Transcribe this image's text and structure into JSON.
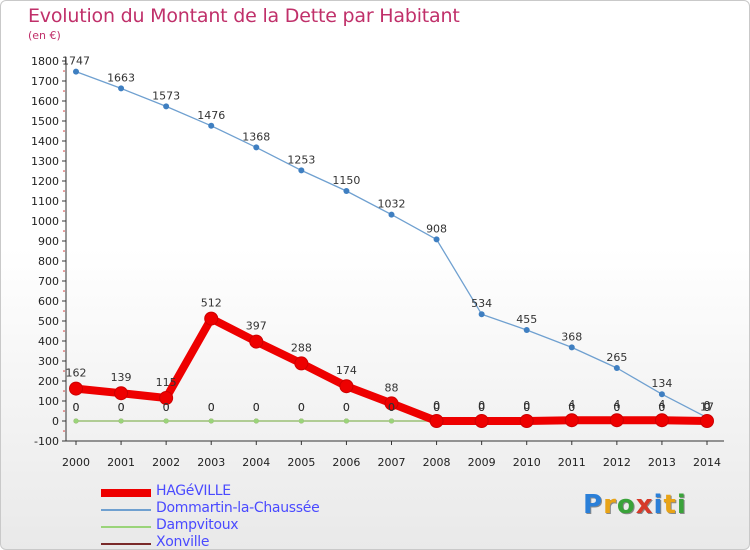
{
  "title": "Evolution du Montant de la Dette par Habitant",
  "subtitle": "(en €)",
  "logo": {
    "letters": [
      "P",
      "r",
      "o",
      "x",
      "i",
      "t",
      "i"
    ],
    "colors": [
      "#2a7fd8",
      "#e8a317",
      "#3aa33a",
      "#d63a2a",
      "#2a7fd8",
      "#e8a317",
      "#3aa33a"
    ]
  },
  "chart_data": {
    "type": "line",
    "x": [
      "2000",
      "2001",
      "2002",
      "2003",
      "2004",
      "2005",
      "2006",
      "2007",
      "2008",
      "2009",
      "2010",
      "2011",
      "2012",
      "2013",
      "2014"
    ],
    "ylim": [
      -100,
      1800
    ],
    "yticks": [
      "-100",
      "0",
      "100",
      "200",
      "300",
      "400",
      "500",
      "600",
      "700",
      "800",
      "900",
      "1000",
      "1100",
      "1200",
      "1300",
      "1400",
      "1500",
      "1600",
      "1700",
      "1800"
    ],
    "grid": false,
    "legend_position": "bottom-left",
    "series": [
      {
        "name": "HAGéVILLE",
        "color": "#ee0000",
        "values": [
          162,
          139,
          115,
          512,
          397,
          288,
          174,
          88,
          0,
          0,
          0,
          4,
          4,
          4,
          0
        ],
        "labels": [
          "162",
          "139",
          "115",
          "512",
          "397",
          "288",
          "174",
          "88",
          "0",
          "0",
          "0",
          "4",
          "4",
          "4",
          "0"
        ]
      },
      {
        "name": "Dommartin-la-Chaussée",
        "color": "#6fa0d0",
        "values": [
          1747,
          1663,
          1573,
          1476,
          1368,
          1253,
          1150,
          1032,
          908,
          534,
          455,
          368,
          265,
          134,
          17
        ],
        "labels": [
          "1747",
          "1663",
          "1573",
          "1476",
          "1368",
          "1253",
          "1150",
          "1032",
          "908",
          "534",
          "455",
          "368",
          "265",
          "134",
          "17"
        ]
      },
      {
        "name": "Dampvitoux",
        "color": "#9ad47a",
        "values": [
          0,
          0,
          0,
          0,
          0,
          0,
          0,
          0,
          0,
          0,
          0,
          0,
          0,
          0,
          0
        ],
        "labels": [
          "0",
          "0",
          "0",
          "0",
          "0",
          "0",
          "0",
          "0",
          "0",
          "0",
          "0",
          "0",
          "0",
          "0",
          "0"
        ]
      },
      {
        "name": "Xonville",
        "color": "#7a2a2a",
        "values": [
          0,
          0,
          0,
          0,
          0,
          0,
          0,
          0,
          0,
          0,
          0,
          0,
          0,
          0,
          0
        ],
        "labels": [
          "0",
          "0",
          "0",
          "0",
          "0",
          "0",
          "0",
          "0",
          "0",
          "0",
          "0",
          "0",
          "0",
          "0",
          "0"
        ]
      }
    ]
  }
}
